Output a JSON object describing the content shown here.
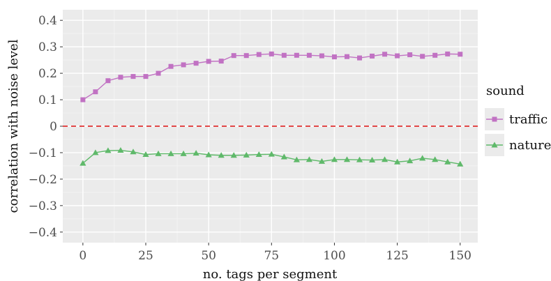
{
  "chart_data": {
    "type": "line",
    "xlabel": "no. tags per segment",
    "ylabel": "correlation with noise level",
    "xlim": [
      -8,
      157
    ],
    "ylim": [
      -0.44,
      0.44
    ],
    "x_ticks": [
      0,
      25,
      50,
      75,
      100,
      125,
      150
    ],
    "x_tick_labels": [
      "0",
      "25",
      "50",
      "75",
      "100",
      "125",
      "150"
    ],
    "y_ticks": [
      0.4,
      0.3,
      0.2,
      0.1,
      0,
      -0.1,
      -0.2,
      -0.3,
      -0.4
    ],
    "y_tick_labels": [
      "0.4",
      "0.3",
      "0.2",
      "0.1",
      "0",
      "−0.1",
      "−0.2",
      "−0.3",
      "−0.4"
    ],
    "grid": true,
    "reference_line": {
      "y": 0,
      "style": "dashed",
      "color": "#e03030"
    },
    "legend": {
      "title": "sound",
      "position": "right"
    },
    "x": [
      0,
      5,
      10,
      15,
      20,
      25,
      30,
      35,
      40,
      45,
      50,
      55,
      60,
      65,
      70,
      75,
      80,
      85,
      90,
      95,
      100,
      105,
      110,
      115,
      120,
      125,
      130,
      135,
      140,
      145,
      150
    ],
    "series": [
      {
        "name": "traffic",
        "color": "#c172c3",
        "marker": "square",
        "values": [
          0.1,
          0.13,
          0.172,
          0.185,
          0.188,
          0.188,
          0.2,
          0.226,
          0.232,
          0.238,
          0.245,
          0.246,
          0.267,
          0.267,
          0.271,
          0.273,
          0.268,
          0.268,
          0.268,
          0.266,
          0.262,
          0.263,
          0.258,
          0.265,
          0.272,
          0.266,
          0.27,
          0.264,
          0.268,
          0.273,
          0.272
        ]
      },
      {
        "name": "nature",
        "color": "#5fb96a",
        "marker": "triangle",
        "values": [
          -0.14,
          -0.1,
          -0.092,
          -0.091,
          -0.097,
          -0.107,
          -0.104,
          -0.104,
          -0.104,
          -0.102,
          -0.108,
          -0.11,
          -0.11,
          -0.109,
          -0.107,
          -0.106,
          -0.116,
          -0.127,
          -0.126,
          -0.133,
          -0.126,
          -0.126,
          -0.127,
          -0.128,
          -0.126,
          -0.135,
          -0.131,
          -0.121,
          -0.126,
          -0.135,
          -0.143
        ]
      }
    ]
  }
}
